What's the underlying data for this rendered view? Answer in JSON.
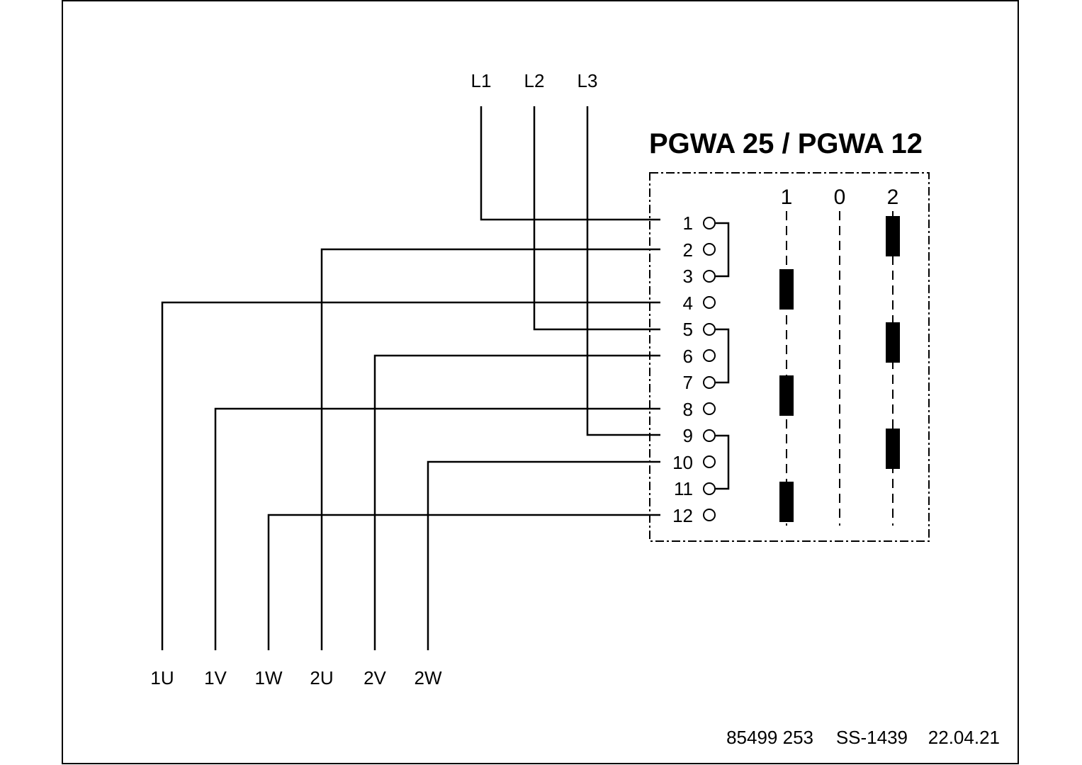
{
  "title": "PGWA 25 / PGWA 12",
  "inputs": [
    "L1",
    "L2",
    "L3"
  ],
  "outputs": [
    "1U",
    "1V",
    "1W",
    "2U",
    "2V",
    "2W"
  ],
  "positions": [
    "1",
    "0",
    "2"
  ],
  "terminals": [
    "1",
    "2",
    "3",
    "4",
    "5",
    "6",
    "7",
    "8",
    "9",
    "10",
    "11",
    "12"
  ],
  "footer": {
    "part_number": "85499 253",
    "drawing_code": "SS-1439",
    "date": "22.04.21"
  }
}
